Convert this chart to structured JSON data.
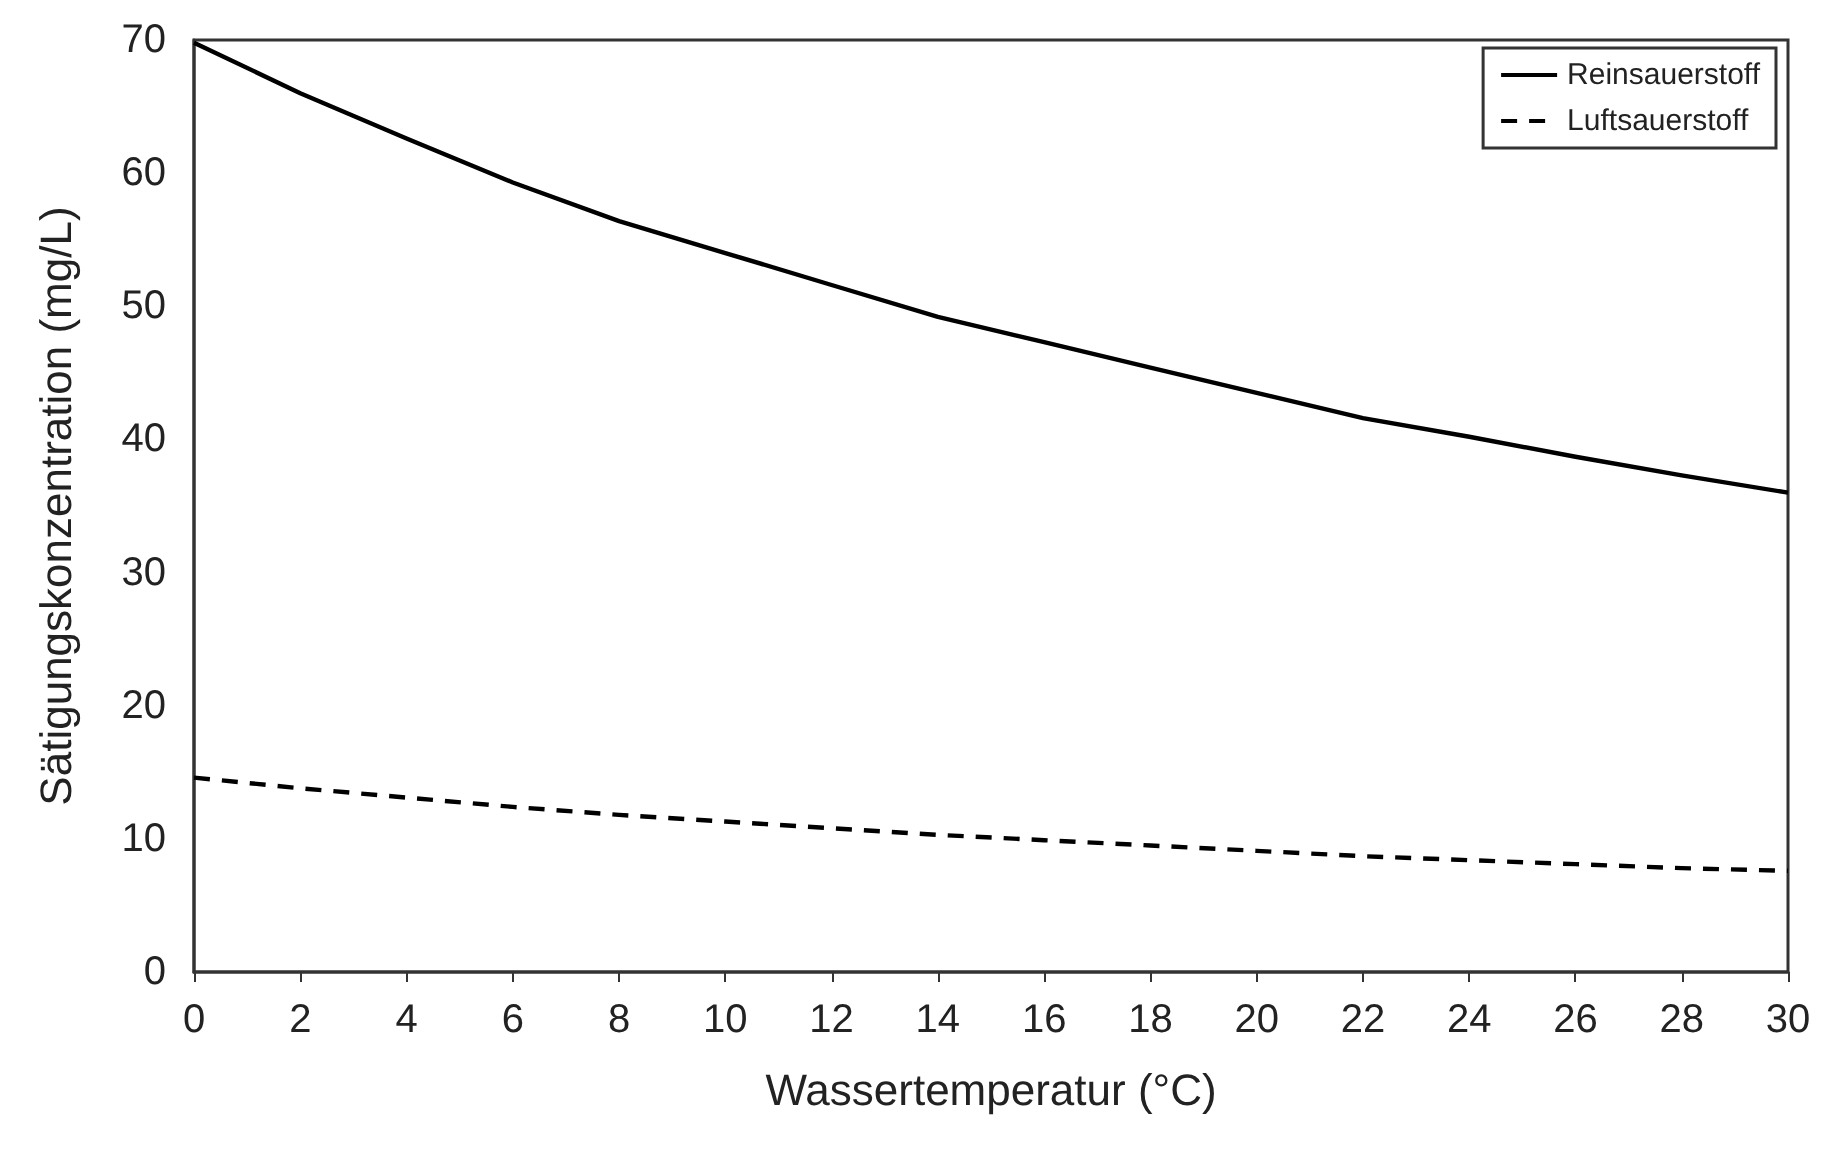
{
  "chart_data": {
    "type": "line",
    "xlabel": "Wassertemperatur (°C)",
    "ylabel": "Sätigungskonzentration (mg/L)",
    "x": [
      0,
      2,
      4,
      6,
      8,
      10,
      12,
      14,
      16,
      18,
      20,
      22,
      24,
      26,
      28,
      30
    ],
    "series": [
      {
        "name": "Reinsauerstoff",
        "color": "#000000",
        "line_style": "solid",
        "values": [
          69.8,
          66.0,
          62.6,
          59.3,
          56.4,
          54.0,
          51.6,
          49.2,
          47.3,
          45.4,
          43.5,
          41.6,
          40.2,
          38.7,
          37.3,
          36.0
        ]
      },
      {
        "name": "Luftsauerstoff",
        "color": "#000000",
        "line_style": "dashed",
        "values": [
          14.6,
          13.8,
          13.1,
          12.4,
          11.8,
          11.3,
          10.8,
          10.3,
          9.9,
          9.5,
          9.1,
          8.7,
          8.4,
          8.1,
          7.8,
          7.6
        ]
      }
    ],
    "xlim": [
      0,
      30
    ],
    "xticks": [
      0,
      2,
      4,
      6,
      8,
      10,
      12,
      14,
      16,
      18,
      20,
      22,
      24,
      26,
      28,
      30
    ],
    "ylim": [
      0,
      70
    ],
    "yticks": [
      0,
      10,
      20,
      30,
      40,
      50,
      60,
      70
    ],
    "grid": false,
    "legend": "top right",
    "marker": "none"
  }
}
